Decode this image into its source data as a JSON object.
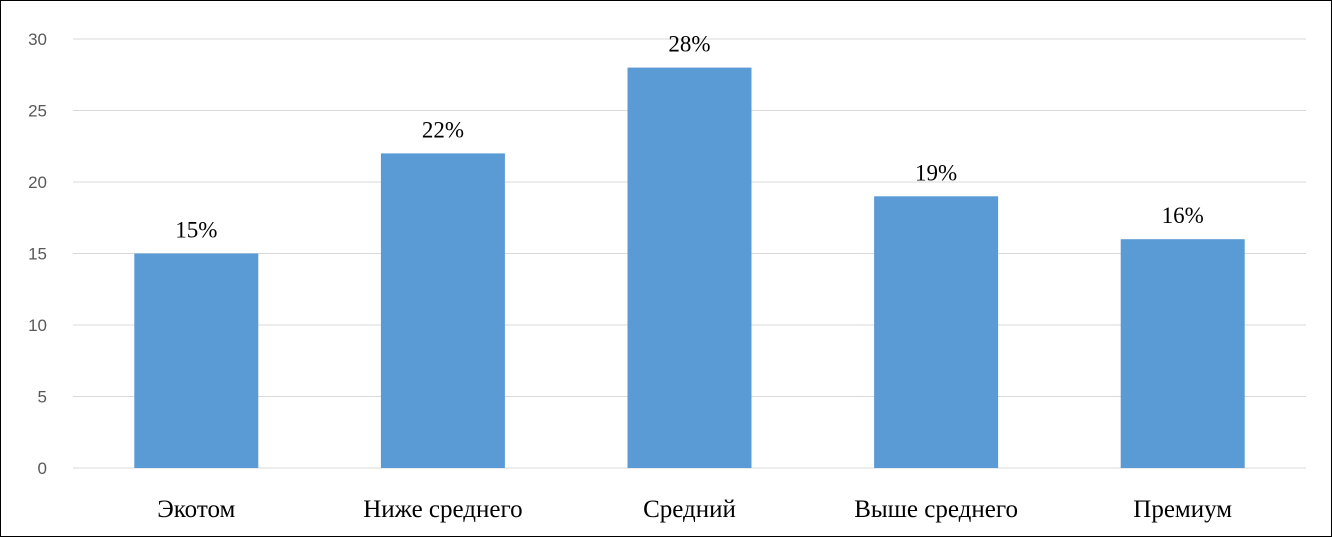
{
  "chart_data": {
    "type": "bar",
    "categories": [
      "Экотом",
      "Ниже среднего",
      "Средний",
      "Выше среднего",
      "Премиум"
    ],
    "values": [
      15,
      22,
      28,
      19,
      16
    ],
    "data_labels": [
      "15%",
      "22%",
      "28%",
      "19%",
      "16%"
    ],
    "yticks": [
      "0",
      "5",
      "10",
      "15",
      "20",
      "25",
      "30"
    ],
    "ylim": [
      0,
      30
    ],
    "grid": true,
    "legend": "none",
    "bar_color": "#5B9BD5",
    "grid_color": "#D9D9D9"
  }
}
